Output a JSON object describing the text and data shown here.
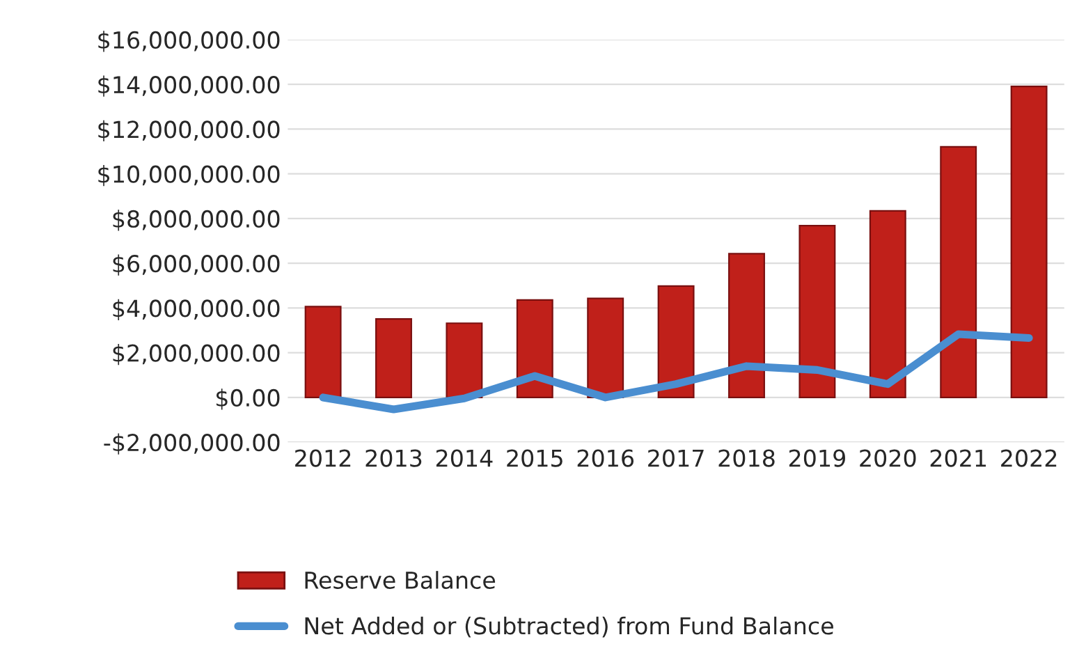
{
  "chart_data": {
    "type": "bar",
    "categories": [
      "2012",
      "2013",
      "2014",
      "2015",
      "2016",
      "2017",
      "2018",
      "2019",
      "2020",
      "2021",
      "2022"
    ],
    "series": [
      {
        "name": "Reserve Balance",
        "color": "#c0201a",
        "values": [
          4060000,
          3510000,
          3320000,
          4360000,
          4430000,
          4980000,
          6430000,
          7680000,
          8340000,
          11210000,
          13910000
        ]
      },
      {
        "name": "Net Added or (Subtracted) from Fund Balance",
        "type": "line",
        "color": "#4a8ed0",
        "values": [
          0,
          -530000,
          -40000,
          960000,
          0,
          600000,
          1400000,
          1230000,
          600000,
          2830000,
          2660000
        ]
      }
    ],
    "ylim": [
      -2000000,
      16000000
    ],
    "yticks": [
      {
        "value": -2000000,
        "label": "-$2,000,000.00"
      },
      {
        "value": 0,
        "label": "$0.00"
      },
      {
        "value": 2000000,
        "label": "$2,000,000.00"
      },
      {
        "value": 4000000,
        "label": "$4,000,000.00"
      },
      {
        "value": 6000000,
        "label": "$6,000,000.00"
      },
      {
        "value": 8000000,
        "label": "$8,000,000.00"
      },
      {
        "value": 10000000,
        "label": "$10,000,000.00"
      },
      {
        "value": 12000000,
        "label": "$12,000,000.00"
      },
      {
        "value": 14000000,
        "label": "$14,000,000.00"
      },
      {
        "value": 16000000,
        "label": "$16,000,000.00"
      }
    ],
    "grid": "y",
    "legend": "bottom",
    "line_style": "solid"
  }
}
